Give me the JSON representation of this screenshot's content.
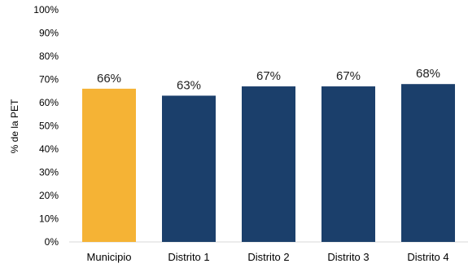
{
  "chart_data": {
    "type": "bar",
    "title": "",
    "xlabel": "",
    "ylabel": "% de la PET",
    "ylim": [
      0,
      100
    ],
    "y_ticks": [
      "0%",
      "10%",
      "20%",
      "30%",
      "40%",
      "50%",
      "60%",
      "70%",
      "80%",
      "90%",
      "100%"
    ],
    "categories": [
      "Municipio",
      "Distrito 1",
      "Distrito 2",
      "Distrito 3",
      "Distrito 4"
    ],
    "values": [
      66,
      63,
      67,
      67,
      68
    ],
    "data_labels": [
      "66%",
      "63%",
      "67%",
      "67%",
      "68%"
    ],
    "bar_colors": [
      "#F5B335",
      "#1B3F6B",
      "#1B3F6B",
      "#1B3F6B",
      "#1B3F6B"
    ],
    "grid": false,
    "legend": "none"
  }
}
